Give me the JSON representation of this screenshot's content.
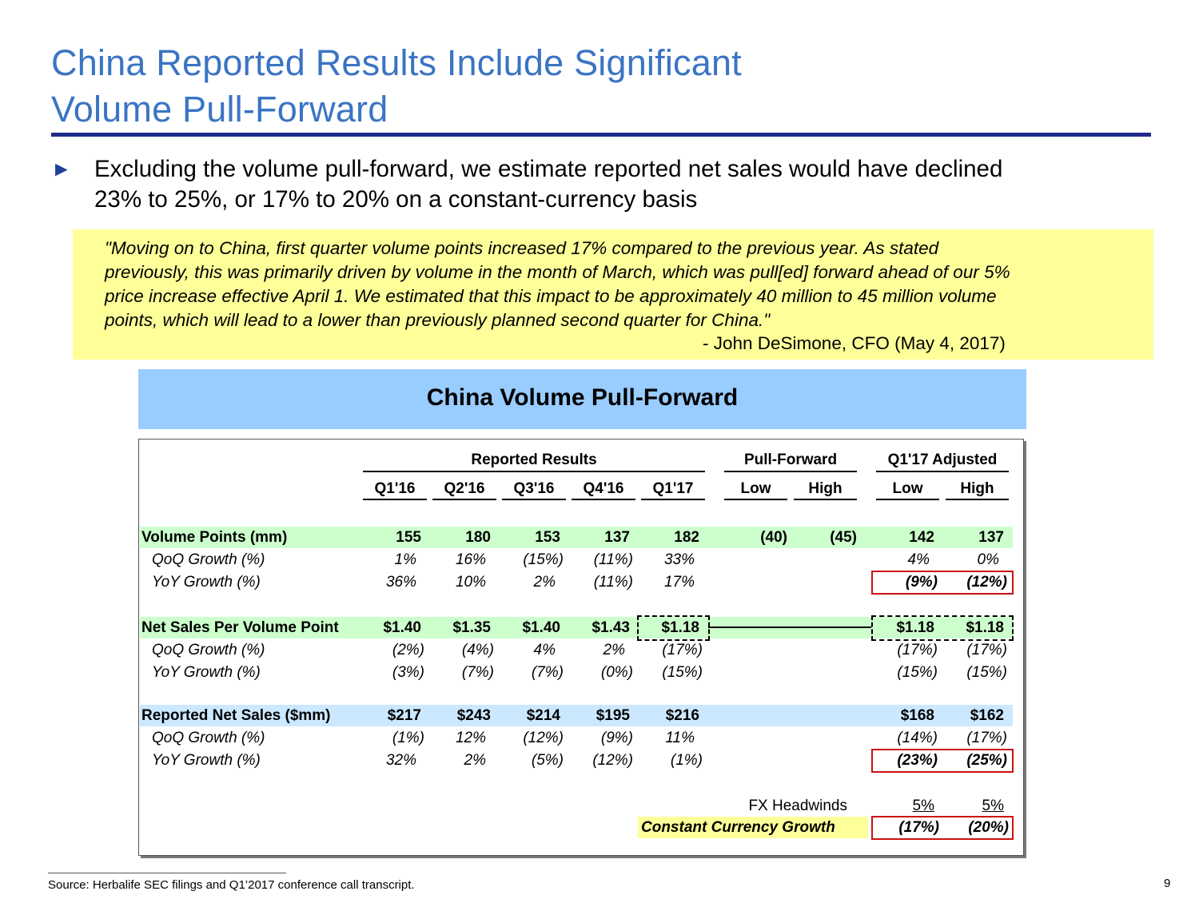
{
  "slide": {
    "title_line1": "China Reported Results Include Significant",
    "title_line2": "Volume Pull-Forward",
    "bullet_line1": "Excluding the volume pull-forward, we estimate reported net sales would have declined",
    "bullet_line2": "23% to 25%, or 17% to 20% on a constant-currency basis",
    "quote": [
      "\"Moving on to China, first quarter volume points increased 17% compared to the previous year. As stated",
      "previously, this was primarily driven by volume in the month of March, which was pull[ed] forward ahead of our 5%",
      "price increase effective April 1. We estimated that this impact to be approximately 40 million to 45 million volume",
      "points, which will lead to a lower than previously planned second quarter for China.\""
    ],
    "quote_attribution": "- John DeSimone, CFO (May 4, 2017)",
    "banner_title": "China Volume Pull-Forward",
    "footnote": "Source: Herbalife SEC filings and Q1’2017 conference call transcript.",
    "page_number": "9"
  },
  "colors": {
    "title": "#3a74c4",
    "title_rule": "#1f2a8c",
    "quote_bg": "#ffff99",
    "banner_bg": "#99ccff",
    "green_band": "#ccffcc",
    "blue_band": "#cce8ff",
    "yellow_band": "#ffff99",
    "highlight_border": "#cc1111"
  },
  "table": {
    "group_headers": {
      "reported": "Reported Results",
      "pull_forward": "Pull-Forward",
      "adjusted": "Q1'17 Adjusted"
    },
    "col_headers": [
      "Q1'16",
      "Q2'16",
      "Q3'16",
      "Q4'16",
      "Q1'17",
      "Low",
      "High",
      "Low",
      "High"
    ],
    "rows": [
      {
        "label": "Volume Points (mm)",
        "values": [
          "155",
          "180",
          "153",
          "137",
          "182",
          "(40)",
          "(45)",
          "142",
          "137"
        ]
      },
      {
        "label": "QoQ Growth (%)",
        "values": [
          "1%",
          "16%",
          "(15%)",
          "(11%)",
          "33%",
          "",
          "",
          "4%",
          "0%"
        ]
      },
      {
        "label": "YoY Growth (%)",
        "values": [
          "36%",
          "10%",
          "2%",
          "(11%)",
          "17%",
          "",
          "",
          "(9%)",
          "(12%)"
        ]
      },
      {
        "label": "Net Sales Per Volume Point",
        "values": [
          "$1.40",
          "$1.35",
          "$1.40",
          "$1.43",
          "$1.18",
          "",
          "",
          "$1.18",
          "$1.18"
        ]
      },
      {
        "label": "QoQ Growth (%)",
        "values": [
          "(2%)",
          "(4%)",
          "4%",
          "2%",
          "(17%)",
          "",
          "",
          "(17%)",
          "(17%)"
        ]
      },
      {
        "label": "YoY Growth (%)",
        "values": [
          "(3%)",
          "(7%)",
          "(7%)",
          "(0%)",
          "(15%)",
          "",
          "",
          "(15%)",
          "(15%)"
        ]
      },
      {
        "label": "Reported Net Sales ($mm)",
        "values": [
          "$217",
          "$243",
          "$214",
          "$195",
          "$216",
          "",
          "",
          "$168",
          "$162"
        ]
      },
      {
        "label": "QoQ Growth (%)",
        "values": [
          "(1%)",
          "12%",
          "(12%)",
          "(9%)",
          "11%",
          "",
          "",
          "(14%)",
          "(17%)"
        ]
      },
      {
        "label": "YoY Growth (%)",
        "values": [
          "32%",
          "2%",
          "(5%)",
          "(12%)",
          "(1%)",
          "",
          "",
          "(23%)",
          "(25%)"
        ]
      }
    ],
    "fx_headwinds": {
      "label": "FX Headwinds",
      "low": "5%",
      "high": "5%"
    },
    "constant_currency": {
      "label": "Constant Currency Growth",
      "low": "(17%)",
      "high": "(20%)"
    }
  }
}
